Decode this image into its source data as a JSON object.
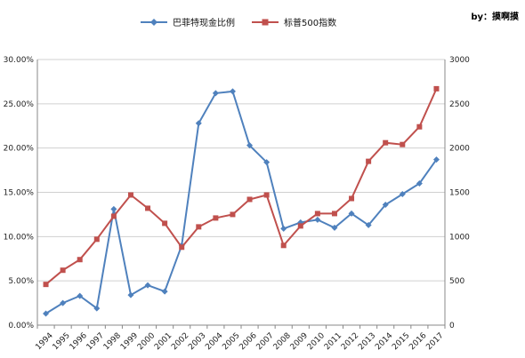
{
  "credit": "by：摸啊摸",
  "colors": {
    "cash_ratio": "#4f81bd",
    "sp500": "#c0504d",
    "grid": "#d0d0d0"
  },
  "chart_data": {
    "type": "line",
    "title": "",
    "legend_position": "top-center",
    "grid": true,
    "categories": [
      "1994",
      "1995",
      "1996",
      "1997",
      "1998",
      "1999",
      "2000",
      "2001",
      "2002",
      "2003",
      "2004",
      "2005",
      "2006",
      "2007",
      "2008",
      "2009",
      "2010",
      "2011",
      "2012",
      "2013",
      "2014",
      "2015",
      "2016",
      "2017"
    ],
    "y_left": {
      "ylim": [
        0,
        0.3
      ],
      "ticks": [
        "0.00%",
        "5.00%",
        "10.00%",
        "15.00%",
        "20.00%",
        "25.00%",
        "30.00%"
      ]
    },
    "y_right": {
      "ylim": [
        0,
        3000
      ],
      "ticks": [
        "0",
        "500",
        "1000",
        "1500",
        "2000",
        "2500",
        "3000"
      ]
    },
    "series": [
      {
        "name": "巴菲特现金比例",
        "axis": "left",
        "marker": "diamond",
        "values": [
          0.013,
          0.025,
          0.033,
          0.019,
          0.131,
          0.034,
          0.045,
          0.038,
          0.09,
          0.228,
          0.262,
          0.264,
          0.203,
          0.184,
          0.109,
          0.116,
          0.119,
          0.11,
          0.126,
          0.113,
          0.136,
          0.148,
          0.16,
          0.187
        ]
      },
      {
        "name": "标普500指数",
        "axis": "right",
        "marker": "square",
        "values": [
          460,
          620,
          740,
          970,
          1230,
          1470,
          1320,
          1150,
          880,
          1110,
          1210,
          1250,
          1420,
          1470,
          900,
          1120,
          1260,
          1260,
          1430,
          1850,
          2060,
          2040,
          2240,
          2670
        ]
      }
    ]
  }
}
